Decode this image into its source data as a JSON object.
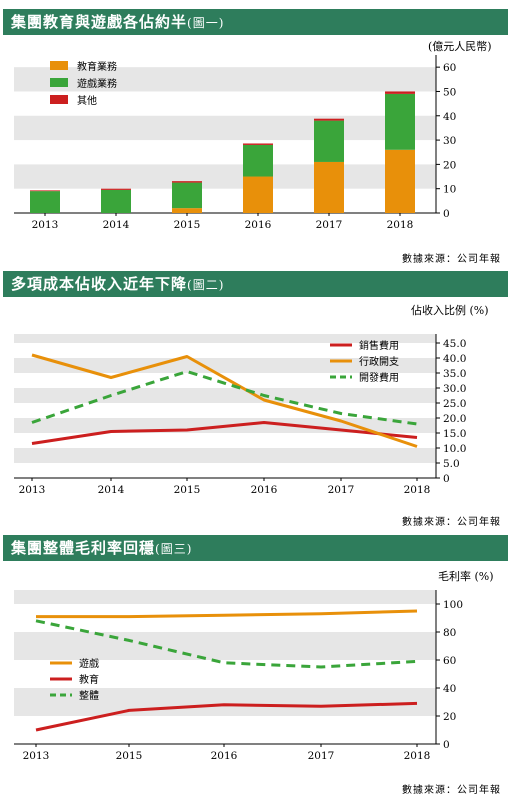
{
  "charts": [
    {
      "title": "集團教育與遊戲各佔約半",
      "fig_label": "(圖一)",
      "unit": "(億元人民幣)",
      "source": "數據來源：公司年報"
    },
    {
      "title": "多項成本佔收入近年下降",
      "fig_label": "(圖二)",
      "unit": "佔收入比例 (%)",
      "source": "數據來源：公司年報"
    },
    {
      "title": "集團整體毛利率回穩",
      "fig_label": "(圖三)",
      "unit": "毛利率 (%)",
      "source": "數據來源：公司年報"
    }
  ],
  "colors": {
    "banner": "#2e7d5c",
    "orange": "#e8900a",
    "green": "#3aa53a",
    "red": "#cc1f1f",
    "band": "#e6e6e6"
  },
  "chart_data": [
    {
      "type": "bar",
      "stacked": true,
      "title": "集團教育與遊戲各佔約半",
      "ylabel": "(億元人民幣)",
      "categories": [
        "2013",
        "2014",
        "2015",
        "2016",
        "2017",
        "2018"
      ],
      "series": [
        {
          "name": "教育業務",
          "color": "#e8900a",
          "values": [
            0,
            0,
            2,
            15,
            21,
            26
          ]
        },
        {
          "name": "遊戲業務",
          "color": "#3aa53a",
          "values": [
            9,
            9.5,
            10.5,
            13,
            17,
            23
          ]
        },
        {
          "name": "其他",
          "color": "#cc1f1f",
          "values": [
            0.3,
            0.5,
            0.6,
            0.6,
            0.8,
            1
          ]
        }
      ],
      "yticks": [
        "0",
        "10",
        "20",
        "30",
        "40",
        "50",
        "60"
      ],
      "ylim": [
        0,
        65
      ],
      "legend": "top-left",
      "grid": "horizontal bands"
    },
    {
      "type": "line",
      "title": "多項成本佔收入近年下降",
      "ylabel": "佔收入比例 (%)",
      "x": [
        "2013",
        "2014",
        "2015",
        "2016",
        "2017",
        "2018"
      ],
      "series": [
        {
          "name": "銷售費用",
          "color": "#cc1f1f",
          "dash": false,
          "values": [
            11.5,
            15.5,
            16,
            18.5,
            16,
            13.5
          ]
        },
        {
          "name": "行政開支",
          "color": "#e8900a",
          "dash": false,
          "values": [
            41,
            33.5,
            40.5,
            26,
            19,
            10.5
          ]
        },
        {
          "name": "開發費用",
          "color": "#3aa53a",
          "dash": true,
          "values": [
            18.5,
            27.5,
            35.5,
            27.5,
            21.5,
            18
          ]
        }
      ],
      "yticks": [
        "0",
        "5.0",
        "10.0",
        "15.0",
        "20.0",
        "25.0",
        "30.0",
        "35.0",
        "40.0",
        "45.0"
      ],
      "ylim": [
        0,
        48
      ],
      "legend": "top-right",
      "grid": "horizontal bands"
    },
    {
      "type": "line",
      "title": "集團整體毛利率回穩",
      "ylabel": "毛利率 (%)",
      "x": [
        "2013",
        "2015",
        "2016",
        "2017",
        "2018"
      ],
      "series": [
        {
          "name": "遊戲",
          "color": "#e8900a",
          "dash": false,
          "values": [
            91,
            91,
            92,
            93,
            95
          ]
        },
        {
          "name": "教育",
          "color": "#cc1f1f",
          "dash": false,
          "values": [
            10,
            24,
            28,
            27,
            29
          ]
        },
        {
          "name": "整體",
          "color": "#3aa53a",
          "dash": true,
          "values": [
            88,
            74,
            58,
            55,
            59
          ]
        }
      ],
      "yticks": [
        "0",
        "20",
        "40",
        "60",
        "80",
        "100"
      ],
      "ylim": [
        0,
        110
      ],
      "legend": "middle-left",
      "grid": "horizontal bands"
    }
  ]
}
